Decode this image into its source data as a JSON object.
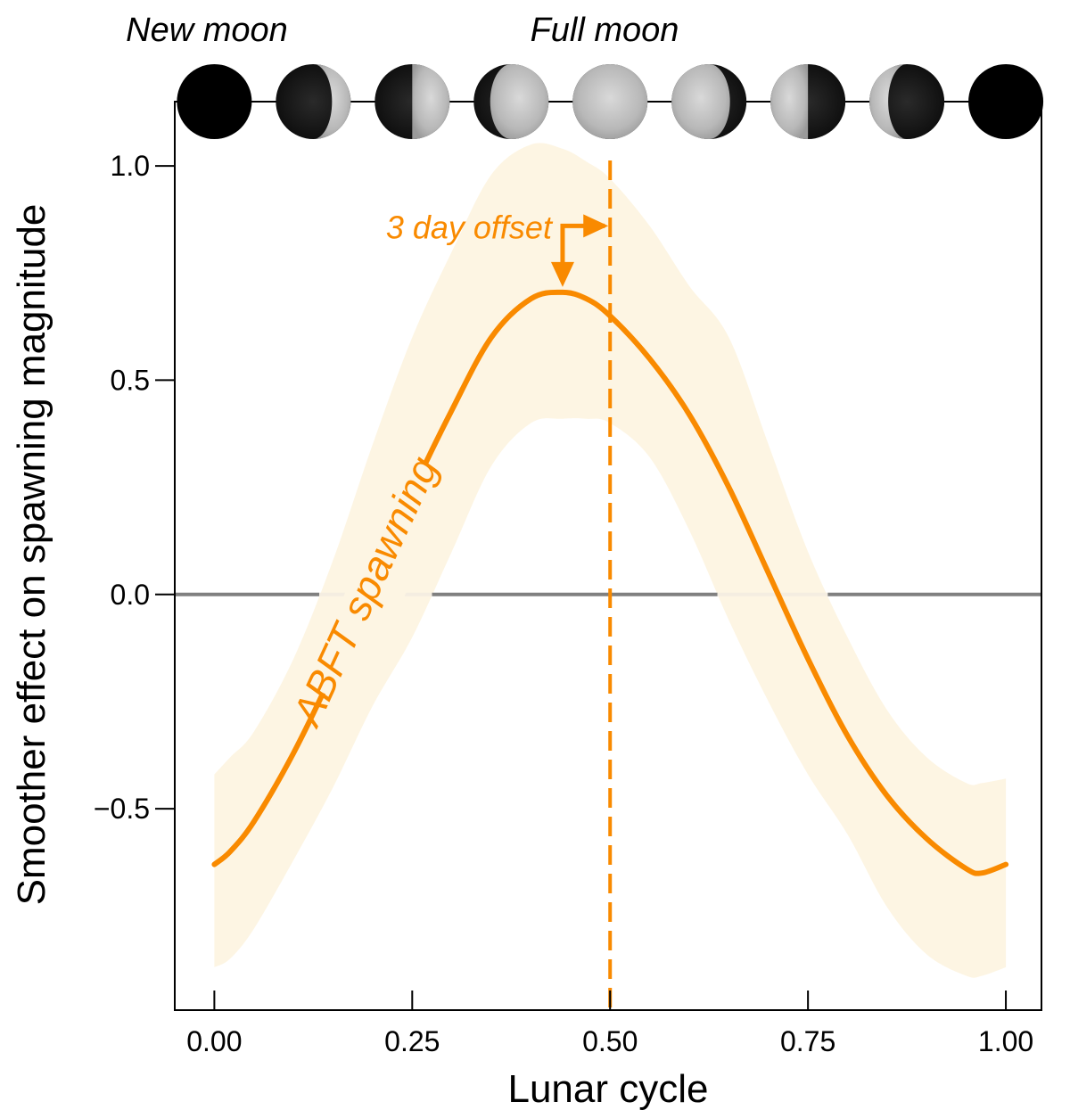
{
  "chart_data": {
    "type": "line",
    "xlabel": "Lunar cycle",
    "ylabel": "Smoother effect on spawning magnitude",
    "xlim": [
      -0.05,
      1.045
    ],
    "ylim": [
      -0.97,
      1.15
    ],
    "x_ticks": [
      0.0,
      0.25,
      0.5,
      0.75,
      1.0
    ],
    "x_tick_labels": [
      "0.00",
      "0.25",
      "0.50",
      "0.75",
      "1.00"
    ],
    "y_ticks": [
      -0.5,
      0.0,
      0.5,
      1.0
    ],
    "y_tick_labels": [
      "−0.5",
      "0.0",
      "0.5",
      "1.0"
    ],
    "phase_labels": {
      "new_moon": "New moon",
      "full_moon": "Full moon"
    },
    "moon_phases": [
      {
        "x": 0.0,
        "illum": 0.0,
        "side": "right"
      },
      {
        "x": 0.125,
        "illum": 0.25,
        "side": "right"
      },
      {
        "x": 0.25,
        "illum": 0.5,
        "side": "right"
      },
      {
        "x": 0.375,
        "illum": 0.78,
        "side": "right"
      },
      {
        "x": 0.5,
        "illum": 1.0,
        "side": "right"
      },
      {
        "x": 0.625,
        "illum": 0.78,
        "side": "left"
      },
      {
        "x": 0.75,
        "illum": 0.5,
        "side": "left"
      },
      {
        "x": 0.875,
        "illum": 0.25,
        "side": "left"
      },
      {
        "x": 1.0,
        "illum": 0.0,
        "side": "left"
      }
    ],
    "series": [
      {
        "name": "ABFT spawning",
        "color": "#f98a00",
        "x": [
          0.0,
          0.02,
          0.05,
          0.1,
          0.15,
          0.2,
          0.25,
          0.3,
          0.35,
          0.4,
          0.44,
          0.47,
          0.5,
          0.55,
          0.6,
          0.65,
          0.7,
          0.75,
          0.8,
          0.85,
          0.9,
          0.95,
          0.97,
          1.0
        ],
        "y": [
          -0.63,
          -0.6,
          -0.53,
          -0.37,
          -0.18,
          0.03,
          0.24,
          0.43,
          0.6,
          0.69,
          0.705,
          0.69,
          0.65,
          0.55,
          0.42,
          0.25,
          0.05,
          -0.15,
          -0.33,
          -0.47,
          -0.57,
          -0.64,
          -0.65,
          -0.63
        ],
        "upper": [
          -0.42,
          -0.38,
          -0.32,
          -0.15,
          0.08,
          0.35,
          0.6,
          0.8,
          0.98,
          1.05,
          1.04,
          1.01,
          0.97,
          0.86,
          0.72,
          0.6,
          0.35,
          0.1,
          -0.1,
          -0.27,
          -0.38,
          -0.44,
          -0.44,
          -0.43
        ],
        "lower": [
          -0.87,
          -0.85,
          -0.78,
          -0.62,
          -0.45,
          -0.26,
          -0.1,
          0.1,
          0.3,
          0.4,
          0.41,
          0.41,
          0.4,
          0.32,
          0.15,
          -0.06,
          -0.25,
          -0.42,
          -0.56,
          -0.73,
          -0.84,
          -0.89,
          -0.89,
          -0.87
        ]
      }
    ],
    "reference_line_y": 0.0,
    "full_moon_x": 0.5,
    "annotations": {
      "curve_label": "ABFT spawning",
      "offset_label": "3 day offset",
      "peak_x": 0.44,
      "peak_y": 0.705,
      "offset_arrow_y": 0.86
    },
    "colors": {
      "accent": "#f98a00",
      "band": "#fdf5e3",
      "reference": "#808080",
      "axis": "#000000"
    }
  }
}
